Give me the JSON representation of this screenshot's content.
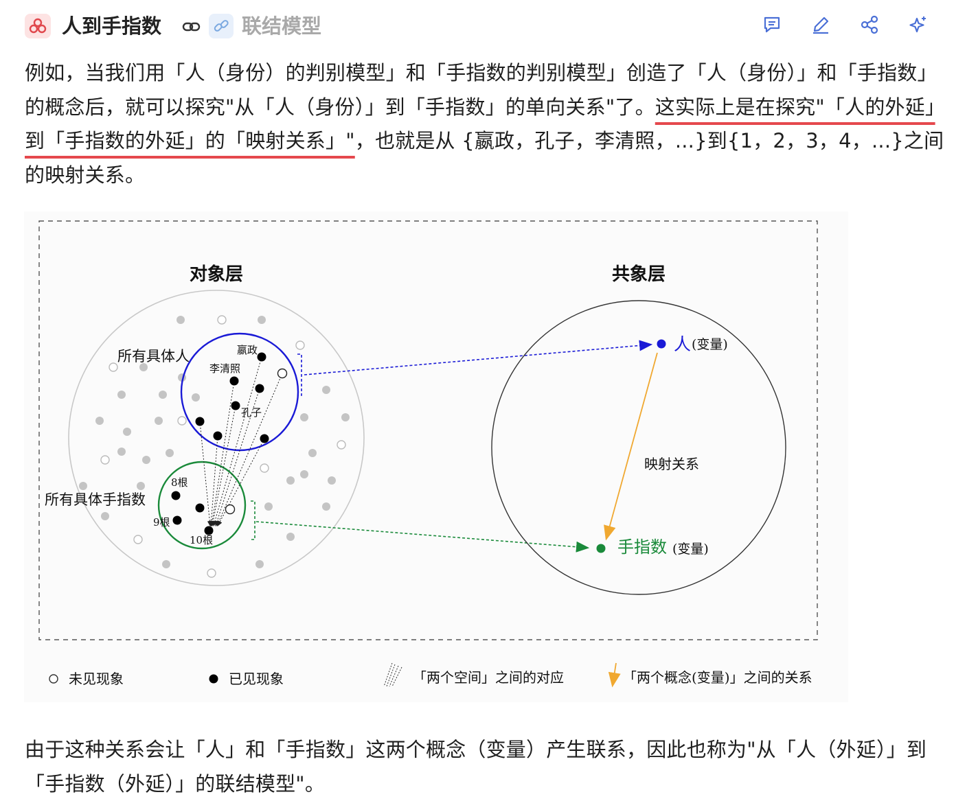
{
  "header": {
    "title": "人到手指数",
    "related_title": "联结模型",
    "icons": [
      "model-logo-icon",
      "link-icon",
      "chain-link-icon",
      "comment-icon",
      "edit-pencil-icon",
      "share-icon",
      "sparkle-icon"
    ]
  },
  "paragraph1": {
    "part1": "例如，当我们用「人（身份）的判别模型」和「手指数的判别模型」创造了「人（身份）」和「手指数」的概念后，就可以探究\"从「人（身份）」到「手指数」的单向关系\"了。",
    "highlight": "这实际上是在探究\"「人的外延」到「手指数的外延」的「映射关系」\"",
    "part2": "，也就是从 {嬴政，孔子，李清照，...}到{1，2，3，4，...}之间的映射关系。"
  },
  "figure": {
    "object_layer_title": "对象层",
    "concept_layer_title": "共象层",
    "label_all_people": "所有具体人",
    "label_all_fingers": "所有具体手指数",
    "label_yingzheng": "嬴政",
    "label_liqingzhao": "李清照",
    "label_kongzi": "孔子",
    "label_8": "8根",
    "label_9": "9根",
    "label_10": "10根",
    "var_person": "人",
    "var_person_suffix": "(变量)",
    "var_finger": "手指数",
    "var_finger_suffix": "(变量)",
    "mapping_label": "映射关系",
    "legend_unseen": "未见现象",
    "legend_seen": "已见现象",
    "legend_space": "「两个空间」之间的对应",
    "legend_concept": "「两个概念(变量)」之间的关系",
    "colors": {
      "blue": "#1a1ad6",
      "green": "#1a8a3a",
      "orange": "#f0a830"
    }
  },
  "paragraph2": {
    "text": "由于这种关系会让「人」和「手指数」这两个概念（变量）产生联系，因此也称为\"从「人（外延）」到「手指数（外延）」的联结模型\"。"
  }
}
